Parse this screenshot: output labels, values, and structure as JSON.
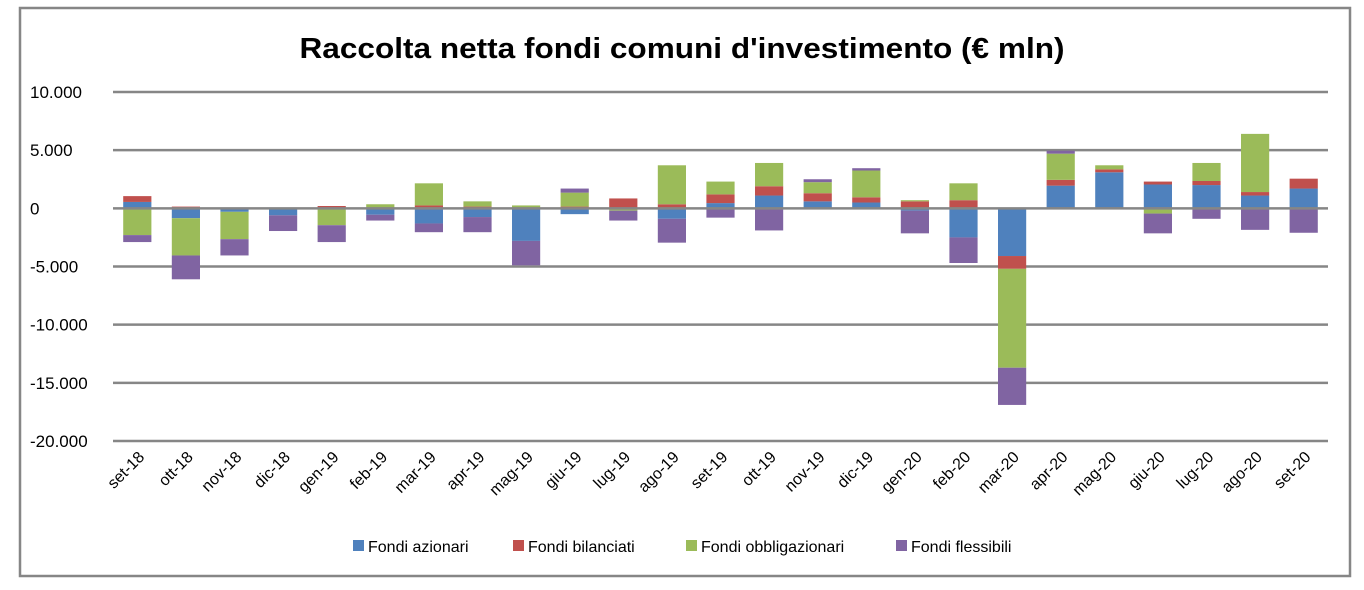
{
  "chart_data": {
    "type": "bar",
    "stacked": true,
    "title": "Raccolta netta fondi comuni d'investimento (€ mln)",
    "xlabel": "",
    "ylabel": "",
    "ylim": [
      -20000,
      10000
    ],
    "yticks": [
      10000,
      5000,
      0,
      -5000,
      -10000,
      -15000,
      -20000
    ],
    "ytick_labels": [
      "10.000",
      "5.000",
      "0",
      "-5.000",
      "-10.000",
      "-15.000",
      "-20.000"
    ],
    "grid": true,
    "legend_position": "bottom",
    "categories": [
      "set-18",
      "ott-18",
      "nov-18",
      "dic-18",
      "gen-19",
      "feb-19",
      "mar-19",
      "apr-19",
      "mag-19",
      "giu-19",
      "lug-19",
      "ago-19",
      "set-19",
      "ott-19",
      "nov-19",
      "dic-19",
      "gen-20",
      "feb-20",
      "mar-20",
      "apr-20",
      "mag-20",
      "giu-20",
      "lug-20",
      "ago-20",
      "set-20"
    ],
    "series": [
      {
        "name": "Fondi azionari",
        "color": "#4F81BD",
        "values": [
          550,
          -850,
          -300,
          -600,
          0,
          -550,
          -1300,
          -750,
          -2800,
          -500,
          0,
          -900,
          450,
          1100,
          600,
          500,
          -200,
          -2500,
          -4100,
          1950,
          3100,
          2050,
          2000,
          1100,
          1700
        ]
      },
      {
        "name": "Fondi bilanciati",
        "color": "#C0504D",
        "values": [
          500,
          150,
          0,
          0,
          200,
          0,
          250,
          150,
          0,
          150,
          850,
          350,
          750,
          800,
          700,
          450,
          600,
          700,
          -1100,
          500,
          250,
          250,
          350,
          300,
          850
        ]
      },
      {
        "name": "Fondi obbligazionari",
        "color": "#9BBB59",
        "values": [
          -2300,
          -3200,
          -2350,
          0,
          -1450,
          350,
          1900,
          450,
          250,
          1200,
          -200,
          3350,
          1100,
          2000,
          950,
          2300,
          100,
          1450,
          -8500,
          2250,
          350,
          -450,
          1550,
          5000,
          0
        ]
      },
      {
        "name": "Fondi flessibili",
        "color": "#8064A2",
        "values": [
          -600,
          -2050,
          -1400,
          -1350,
          -1450,
          -500,
          -750,
          -1300,
          -2100,
          350,
          -850,
          -2050,
          -800,
          -1900,
          250,
          200,
          -1950,
          -2200,
          -3200,
          250,
          0,
          -1700,
          -900,
          -1850,
          -2100
        ]
      }
    ]
  }
}
